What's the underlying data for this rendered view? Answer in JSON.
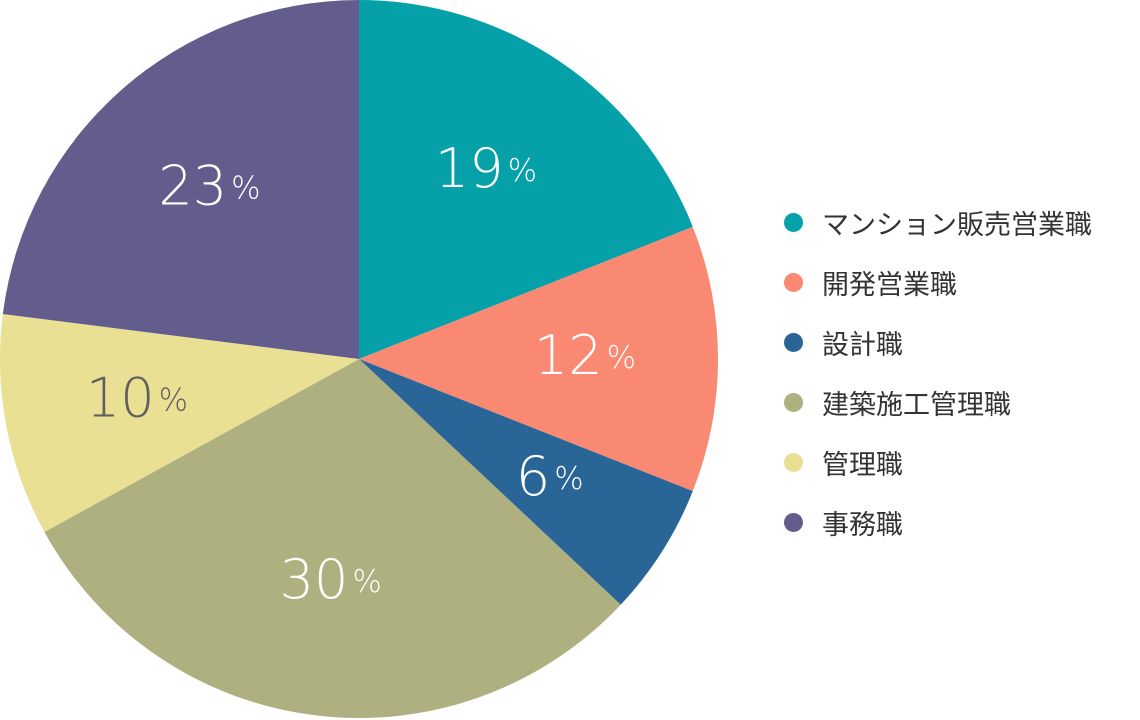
{
  "chart_data": {
    "type": "pie",
    "unit": "%",
    "slices": [
      {
        "name": "マンション販売営業職",
        "value": 19,
        "color": "#06a0a8",
        "label_color": "#ffffff"
      },
      {
        "name": "開発営業職",
        "value": 12,
        "color": "#fa8973",
        "label_color": "#ffffff"
      },
      {
        "name": "設計職",
        "value": 6,
        "color": "#2a6598",
        "label_color": "#ffffff"
      },
      {
        "name": "建築施工管理職",
        "value": 30,
        "color": "#afb080",
        "label_color": "#ffffff"
      },
      {
        "name": "管理職",
        "value": 10,
        "color": "#eae093",
        "label_color": "#5f5f5f"
      },
      {
        "name": "事務職",
        "value": 23,
        "color": "#635d8e",
        "label_color": "#ffffff"
      }
    ],
    "legend_position": "right"
  }
}
